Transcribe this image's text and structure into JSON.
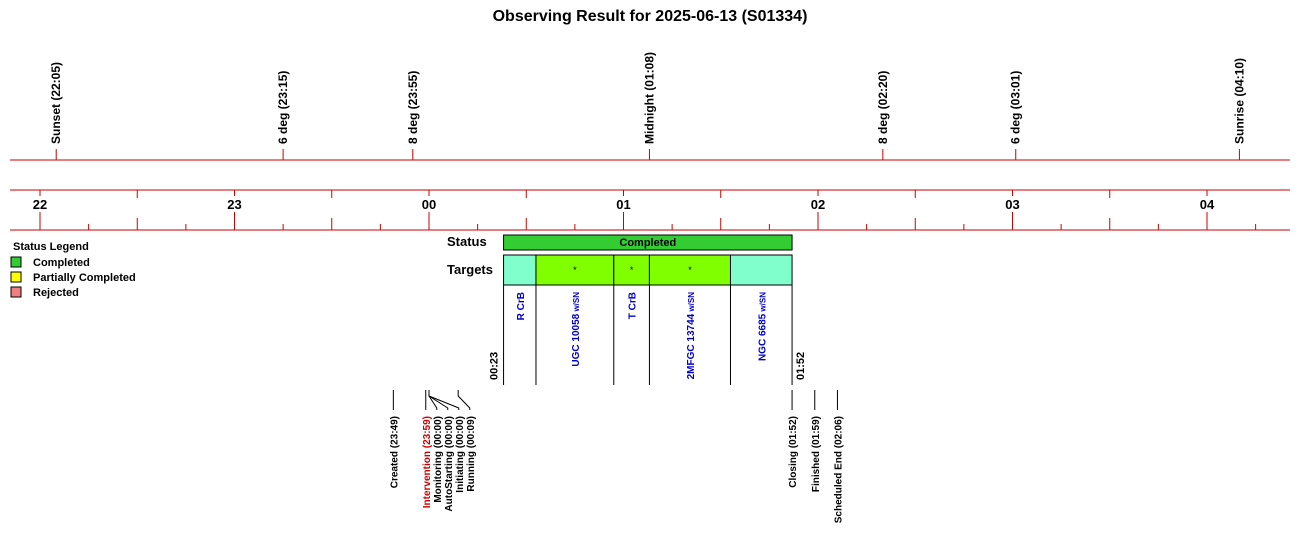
{
  "title": "Observing Result for 2025-06-13 (S01334)",
  "chart_data": {
    "type": "timeline",
    "time_axis": {
      "start": "21:55",
      "end": "04:25",
      "hour_labels": [
        "22",
        "23",
        "00",
        "01",
        "02",
        "03",
        "04"
      ]
    },
    "night_events": [
      {
        "label": "Sunset (22:05)",
        "time": "22:05"
      },
      {
        "label": "6 deg (23:15)",
        "time": "23:15"
      },
      {
        "label": "8 deg (23:55)",
        "time": "23:55"
      },
      {
        "label": "Midnight (01:08)",
        "time": "01:08"
      },
      {
        "label": "8 deg (02:20)",
        "time": "02:20"
      },
      {
        "label": "6 deg (03:01)",
        "time": "03:01"
      },
      {
        "label": "Sunrise (04:10)",
        "time": "04:10"
      }
    ],
    "rows": {
      "status": "Status",
      "targets": "Targets"
    },
    "status_bar": {
      "label": "Completed",
      "start": "00:23",
      "end": "01:52",
      "color": "#33cc33"
    },
    "start_label": "00:23",
    "end_label": "01:52",
    "targets": [
      {
        "name": "R CrB",
        "start": "00:23",
        "end": "00:33",
        "color": "#80ffcc",
        "marker": ""
      },
      {
        "name": "UGC 10058 w/SN",
        "start": "00:33",
        "end": "00:57",
        "color": "#80ff00",
        "marker": "*"
      },
      {
        "name": "T CrB",
        "start": "00:57",
        "end": "01:08",
        "color": "#80ff00",
        "marker": "*"
      },
      {
        "name": "2MFGC 13744 w/SN",
        "start": "01:08",
        "end": "01:33",
        "color": "#80ff00",
        "marker": "*"
      },
      {
        "name": "NGC 6685 w/SN",
        "start": "01:33",
        "end": "01:52",
        "color": "#80ffcc",
        "marker": ""
      }
    ],
    "legend": {
      "title": "Status Legend",
      "items": [
        {
          "label": "Completed",
          "color": "#33cc33"
        },
        {
          "label": "Partially Completed",
          "color": "#ffff00"
        },
        {
          "label": "Rejected",
          "color": "#f08080"
        }
      ]
    },
    "history": [
      {
        "label": "Created (23:49)",
        "time": "23:49",
        "color": "#000000"
      },
      {
        "label": "Intervention (23:59)",
        "time": "23:59",
        "color": "#cc0000"
      },
      {
        "label": "Monitoring (00:00)",
        "time": "00:00",
        "color": "#000000"
      },
      {
        "label": "AutoStarting (00:00)",
        "time": "00:00",
        "color": "#000000"
      },
      {
        "label": "Initiating (00:00)",
        "time": "00:00",
        "color": "#000000"
      },
      {
        "label": "Running (00:09)",
        "time": "00:09",
        "color": "#000000"
      },
      {
        "label": "Closing (01:52)",
        "time": "01:52",
        "color": "#000000"
      },
      {
        "label": "Finished (01:59)",
        "time": "01:59",
        "color": "#000000"
      },
      {
        "label": "Scheduled End (02:06)",
        "time": "02:06",
        "color": "#000000"
      }
    ]
  }
}
